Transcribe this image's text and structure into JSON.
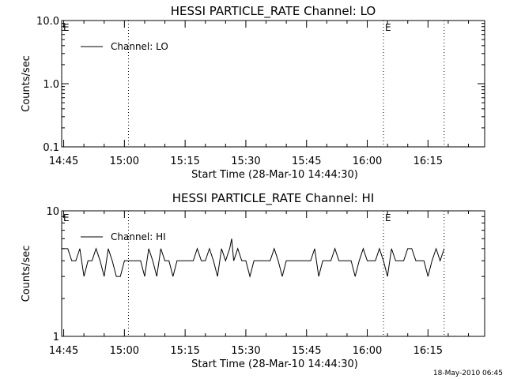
{
  "footer": {
    "timestamp": "18-May-2010 06:45"
  },
  "chart_data": [
    {
      "type": "line",
      "title": "HESSI PARTICLE_RATE Channel: LO",
      "xlabel": "Start Time (28-Mar-10 14:44:30)",
      "ylabel": "Counts/sec",
      "y_scale": "log",
      "ylim": [
        0.1,
        10.0
      ],
      "y_ticks": [
        0.1,
        1.0,
        10.0
      ],
      "y_tick_labels": [
        "0.1",
        "1.0",
        "10.0"
      ],
      "xlim": [
        "14:44:30",
        "16:29:00"
      ],
      "x_ticks": [
        "14:45",
        "15:00",
        "15:15",
        "15:30",
        "15:45",
        "16:00",
        "16:15"
      ],
      "series": [
        {
          "name": "Channel: LO",
          "x": [],
          "values": []
        }
      ],
      "markers": [
        {
          "time": "15:01:00",
          "label": ""
        },
        {
          "time": "16:04:00",
          "label": "E"
        },
        {
          "time": "16:19:00",
          "label": ""
        }
      ],
      "left_label": "E",
      "legend": "top-left",
      "grid": false
    },
    {
      "type": "line",
      "title": "HESSI PARTICLE_RATE Channel: HI",
      "xlabel": "Start Time (28-Mar-10 14:44:30)",
      "ylabel": "Counts/sec",
      "y_scale": "log",
      "ylim": [
        1,
        10
      ],
      "y_ticks": [
        1,
        10
      ],
      "y_tick_labels": [
        "1",
        "10"
      ],
      "xlim": [
        "14:44:30",
        "16:29:00"
      ],
      "x_ticks": [
        "14:45",
        "15:00",
        "15:15",
        "15:30",
        "15:45",
        "16:00",
        "16:15"
      ],
      "series": [
        {
          "name": "Channel: HI",
          "x": [
            "14:44:30",
            "14:46:00",
            "14:47:00",
            "14:48:00",
            "14:49:00",
            "14:50:00",
            "14:51:00",
            "14:52:00",
            "14:53:00",
            "14:54:00",
            "14:55:00",
            "14:56:00",
            "14:57:00",
            "14:58:00",
            "14:59:00",
            "15:00:00",
            "15:01:00",
            "15:02:00",
            "15:03:00",
            "15:04:00",
            "15:05:00",
            "15:06:00",
            "15:07:00",
            "15:08:00",
            "15:09:00",
            "15:10:00",
            "15:11:00",
            "15:12:00",
            "15:13:00",
            "15:14:00",
            "15:15:00",
            "15:16:00",
            "15:17:00",
            "15:18:00",
            "15:19:00",
            "15:20:00",
            "15:21:00",
            "15:22:00",
            "15:23:00",
            "15:24:00",
            "15:25:00",
            "15:26:00",
            "15:26:30",
            "15:27:00",
            "15:28:00",
            "15:29:00",
            "15:30:00",
            "15:31:00",
            "15:32:00",
            "15:33:00",
            "15:34:00",
            "15:35:00",
            "15:36:00",
            "15:37:00",
            "15:38:00",
            "15:39:00",
            "15:40:00",
            "15:41:00",
            "15:42:00",
            "15:43:00",
            "15:44:00",
            "15:45:00",
            "15:46:00",
            "15:47:00",
            "15:48:00",
            "15:49:00",
            "15:50:00",
            "15:51:00",
            "15:52:00",
            "15:53:00",
            "15:54:00",
            "15:55:00",
            "15:56:00",
            "15:57:00",
            "15:58:00",
            "15:59:00",
            "16:00:00",
            "16:01:00",
            "16:02:00",
            "16:03:00",
            "16:04:00",
            "16:05:00",
            "16:06:00",
            "16:07:00",
            "16:08:00",
            "16:09:00",
            "16:10:00",
            "16:11:00",
            "16:12:00",
            "16:13:00",
            "16:14:00",
            "16:15:00",
            "16:16:00",
            "16:17:00",
            "16:18:00",
            "16:19:00"
          ],
          "values": [
            5,
            5,
            4,
            4,
            5,
            3,
            4,
            4,
            5,
            4,
            3,
            5,
            4,
            3,
            3,
            4,
            4,
            4,
            4,
            4,
            3,
            5,
            4,
            3,
            5,
            4,
            4,
            3,
            4,
            4,
            4,
            4,
            4,
            5,
            4,
            4,
            5,
            4,
            3,
            5,
            4,
            5,
            6,
            4,
            5,
            4,
            4,
            3,
            4,
            4,
            4,
            4,
            4,
            5,
            4,
            3,
            4,
            4,
            4,
            4,
            4,
            4,
            4,
            5,
            3,
            4,
            4,
            4,
            5,
            4,
            4,
            4,
            4,
            3,
            4,
            5,
            4,
            4,
            4,
            5,
            4,
            3,
            5,
            4,
            4,
            4,
            5,
            5,
            4,
            4,
            4,
            3,
            4,
            5,
            4,
            5
          ]
        }
      ],
      "markers": [
        {
          "time": "15:01:00",
          "label": ""
        },
        {
          "time": "16:04:00",
          "label": "E"
        },
        {
          "time": "16:19:00",
          "label": ""
        }
      ],
      "left_label": "E",
      "legend": "top-left",
      "grid": false
    }
  ]
}
